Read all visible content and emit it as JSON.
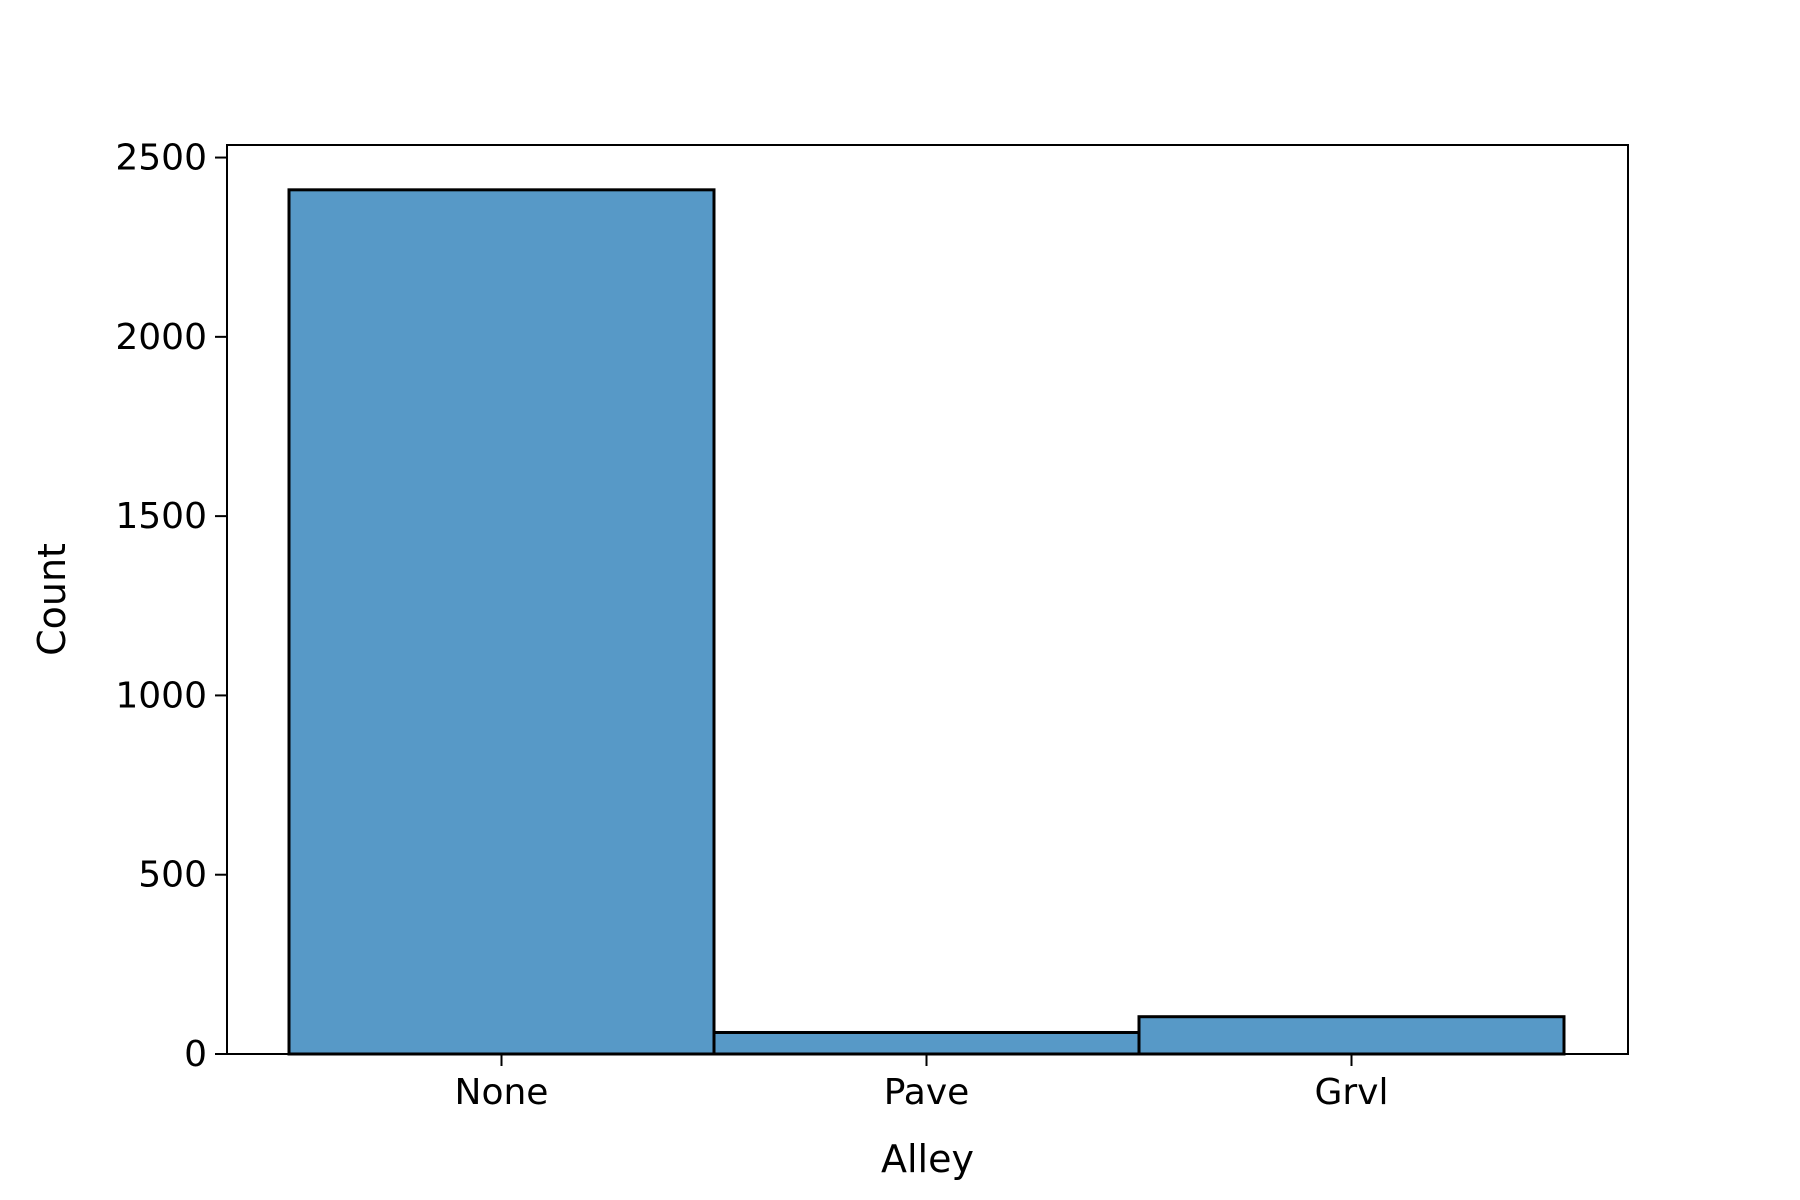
{
  "chart_data": {
    "type": "bar",
    "title": "",
    "xlabel": "Alley",
    "ylabel": "Count",
    "categories": [
      "None",
      "Pave",
      "Grvl"
    ],
    "values": [
      2410,
      60,
      104
    ],
    "ylim": [
      0,
      2535
    ],
    "yticks": [
      0,
      500,
      1000,
      1500,
      2000,
      2500
    ],
    "grid": false,
    "legend": "none",
    "bar_color": "#5799c7",
    "edge_color": "#000000"
  }
}
